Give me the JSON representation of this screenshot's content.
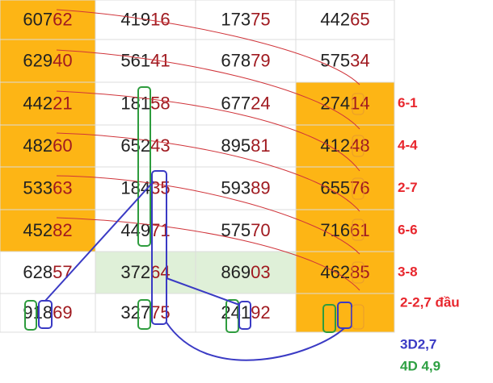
{
  "table": {
    "rows": [
      [
        {
          "head": "607",
          "tail": "62"
        },
        {
          "head": "419",
          "tail": "16"
        },
        {
          "head": "173",
          "tail": "75"
        },
        {
          "head": "442",
          "tail": "65"
        }
      ],
      [
        {
          "head": "629",
          "tail": "40"
        },
        {
          "head": "561",
          "tail": "41"
        },
        {
          "head": "678",
          "tail": "79"
        },
        {
          "head": "575",
          "tail": "34"
        }
      ],
      [
        {
          "head": "442",
          "tail": "21"
        },
        {
          "head": "181",
          "tail": "58"
        },
        {
          "head": "677",
          "tail": "24"
        },
        {
          "head": "274",
          "tail": "14"
        }
      ],
      [
        {
          "head": "482",
          "tail": "60"
        },
        {
          "head": "652",
          "tail": "43"
        },
        {
          "head": "895",
          "tail": "81"
        },
        {
          "head": "412",
          "tail": "48"
        }
      ],
      [
        {
          "head": "533",
          "tail": "63"
        },
        {
          "head": "184",
          "tail": "35"
        },
        {
          "head": "593",
          "tail": "89"
        },
        {
          "head": "655",
          "tail": "76"
        }
      ],
      [
        {
          "head": "452",
          "tail": "82"
        },
        {
          "head": "449",
          "tail": "71"
        },
        {
          "head": "575",
          "tail": "70"
        },
        {
          "head": "716",
          "tail": "61"
        }
      ],
      [
        {
          "head": "628",
          "tail": "57"
        },
        {
          "head": "372",
          "tail": "64"
        },
        {
          "head": "869",
          "tail": "03"
        },
        {
          "head": "462",
          "tail": "85"
        }
      ],
      [
        {
          "head": "918",
          "tail": "69"
        },
        {
          "head": "327",
          "tail": "75"
        },
        {
          "head": "241",
          "tail": "92"
        }
      ]
    ]
  },
  "notes": [
    {
      "row": 2,
      "text": "6-1"
    },
    {
      "row": 3,
      "text": "4-4"
    },
    {
      "row": 4,
      "text": "2-7"
    },
    {
      "row": 5,
      "text": "6-6"
    },
    {
      "row": 6,
      "text": "3-8"
    },
    {
      "row": 7,
      "text": "2-2,7 đầu"
    }
  ],
  "legend": {
    "blue": "3D2,7",
    "green": "4D 4,9"
  }
}
